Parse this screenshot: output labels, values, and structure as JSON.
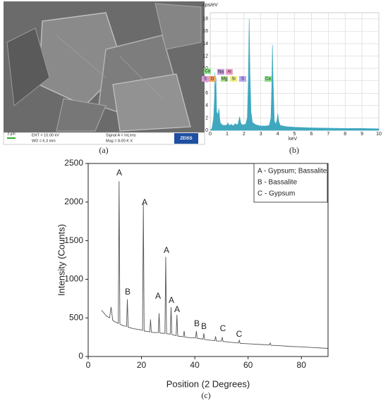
{
  "sem_image": {
    "scale_bar": "2 µm",
    "eht": "EHT = 10.00 kV",
    "wd": "WD = 6.3 mm",
    "signal": "Signal A = InLens",
    "mag": "Mag = 8.00 K X",
    "logo": "ZEISS",
    "label": "(a)"
  },
  "chart_data": [
    {
      "type": "area",
      "label": "(b)",
      "ylabel": "cps/eV",
      "xlabel": "keV",
      "color": "#3fa8bf",
      "grid": true,
      "xlim": [
        0,
        10
      ],
      "xticks": [
        0,
        1,
        2,
        3,
        4,
        5,
        6,
        7,
        8,
        9,
        10
      ],
      "ylim": [
        0,
        19
      ],
      "yticks": [
        0,
        2,
        4,
        6,
        8,
        10,
        12,
        14,
        16,
        18
      ],
      "x": [
        0,
        0.1,
        0.2,
        0.25,
        0.28,
        0.3,
        0.34,
        0.38,
        0.45,
        0.52,
        0.56,
        0.6,
        0.7,
        0.8,
        0.9,
        1.0,
        1.04,
        1.1,
        1.2,
        1.25,
        1.3,
        1.4,
        1.49,
        1.55,
        1.65,
        1.74,
        1.82,
        1.9,
        2.0,
        2.1,
        2.2,
        2.26,
        2.31,
        2.36,
        2.42,
        2.5,
        2.7,
        3.0,
        3.3,
        3.5,
        3.6,
        3.65,
        3.69,
        3.73,
        3.8,
        3.9,
        3.97,
        4.01,
        4.06,
        4.15,
        4.5,
        5,
        6,
        7,
        8,
        9,
        10
      ],
      "values": [
        0,
        0.3,
        2,
        5,
        9.3,
        6,
        8.5,
        3,
        2.5,
        3.5,
        2,
        1.2,
        0.9,
        0.8,
        0.8,
        0.9,
        1.2,
        0.9,
        0.8,
        1,
        0.8,
        0.8,
        1.1,
        0.9,
        1,
        2.2,
        1.1,
        0.9,
        0.9,
        1,
        2,
        8,
        18,
        9,
        3,
        1.3,
        0.9,
        0.7,
        0.7,
        0.8,
        2,
        7,
        13.8,
        8,
        1.5,
        1,
        1.8,
        2.7,
        1.5,
        0.8,
        0.6,
        0.5,
        0.4,
        0.35,
        0.3,
        0.3,
        0.25
      ],
      "annotations": [
        {
          "text": "Ca",
          "color": "#8fe38f"
        },
        {
          "text": "S",
          "color": "#d99ad9"
        },
        {
          "text": "O",
          "color": "#f4a460"
        },
        {
          "text": "Na",
          "color": "#c59ce6"
        },
        {
          "text": "Al",
          "color": "#f0a0c8"
        },
        {
          "text": "Mg",
          "color": "#a8e08c"
        },
        {
          "text": "Si",
          "color": "#f0f08c"
        },
        {
          "text": "S",
          "color": "#b8a8f0"
        },
        {
          "text": "Ca",
          "color": "#8fe38f"
        }
      ]
    },
    {
      "type": "line",
      "label": "(c)",
      "xlabel": "Position (2 Degrees)",
      "ylabel": "Intensity (Counts)",
      "color": "#555555",
      "xlim": [
        0,
        90
      ],
      "xticks": [
        0,
        20,
        40,
        60,
        80
      ],
      "ylim": [
        0,
        2500
      ],
      "yticks": [
        0,
        500,
        1000,
        1500,
        2000,
        2500
      ],
      "x": [
        5,
        6,
        7,
        8,
        8.6,
        9.2,
        10,
        11.3,
        11.6,
        11.9,
        13,
        14.4,
        14.7,
        15,
        17,
        19,
        20.4,
        20.7,
        21,
        23.1,
        23.4,
        23.7,
        25,
        26.3,
        26.6,
        26.9,
        28,
        28.8,
        29.1,
        29.4,
        30.8,
        31.1,
        31.4,
        33,
        33.3,
        33.6,
        35.7,
        36,
        36.3,
        38,
        40.3,
        40.6,
        40.9,
        43.1,
        43.4,
        43.7,
        46,
        47.5,
        47.8,
        48.1,
        50,
        50.3,
        50.6,
        53,
        56.4,
        56.7,
        57,
        60,
        65,
        68,
        68.3,
        68.6,
        72,
        76,
        80,
        85,
        90
      ],
      "values": [
        600,
        560,
        520,
        500,
        640,
        470,
        450,
        430,
        2270,
        420,
        400,
        390,
        740,
        380,
        360,
        350,
        340,
        1980,
        330,
        320,
        480,
        315,
        310,
        310,
        560,
        305,
        300,
        300,
        1290,
        295,
        290,
        640,
        285,
        270,
        540,
        265,
        255,
        330,
        250,
        245,
        240,
        330,
        235,
        225,
        300,
        220,
        210,
        205,
        260,
        200,
        200,
        250,
        195,
        185,
        175,
        210,
        170,
        165,
        155,
        150,
        175,
        145,
        140,
        130,
        125,
        115,
        105
      ],
      "annotations": [
        "A",
        "B",
        "A",
        "A",
        "A",
        "A",
        "A",
        "B",
        "B",
        "C",
        "C"
      ],
      "legend": [
        "A - Gypsum; Bassalite",
        "B - Bassalite",
        "C - Gypsum"
      ]
    }
  ]
}
